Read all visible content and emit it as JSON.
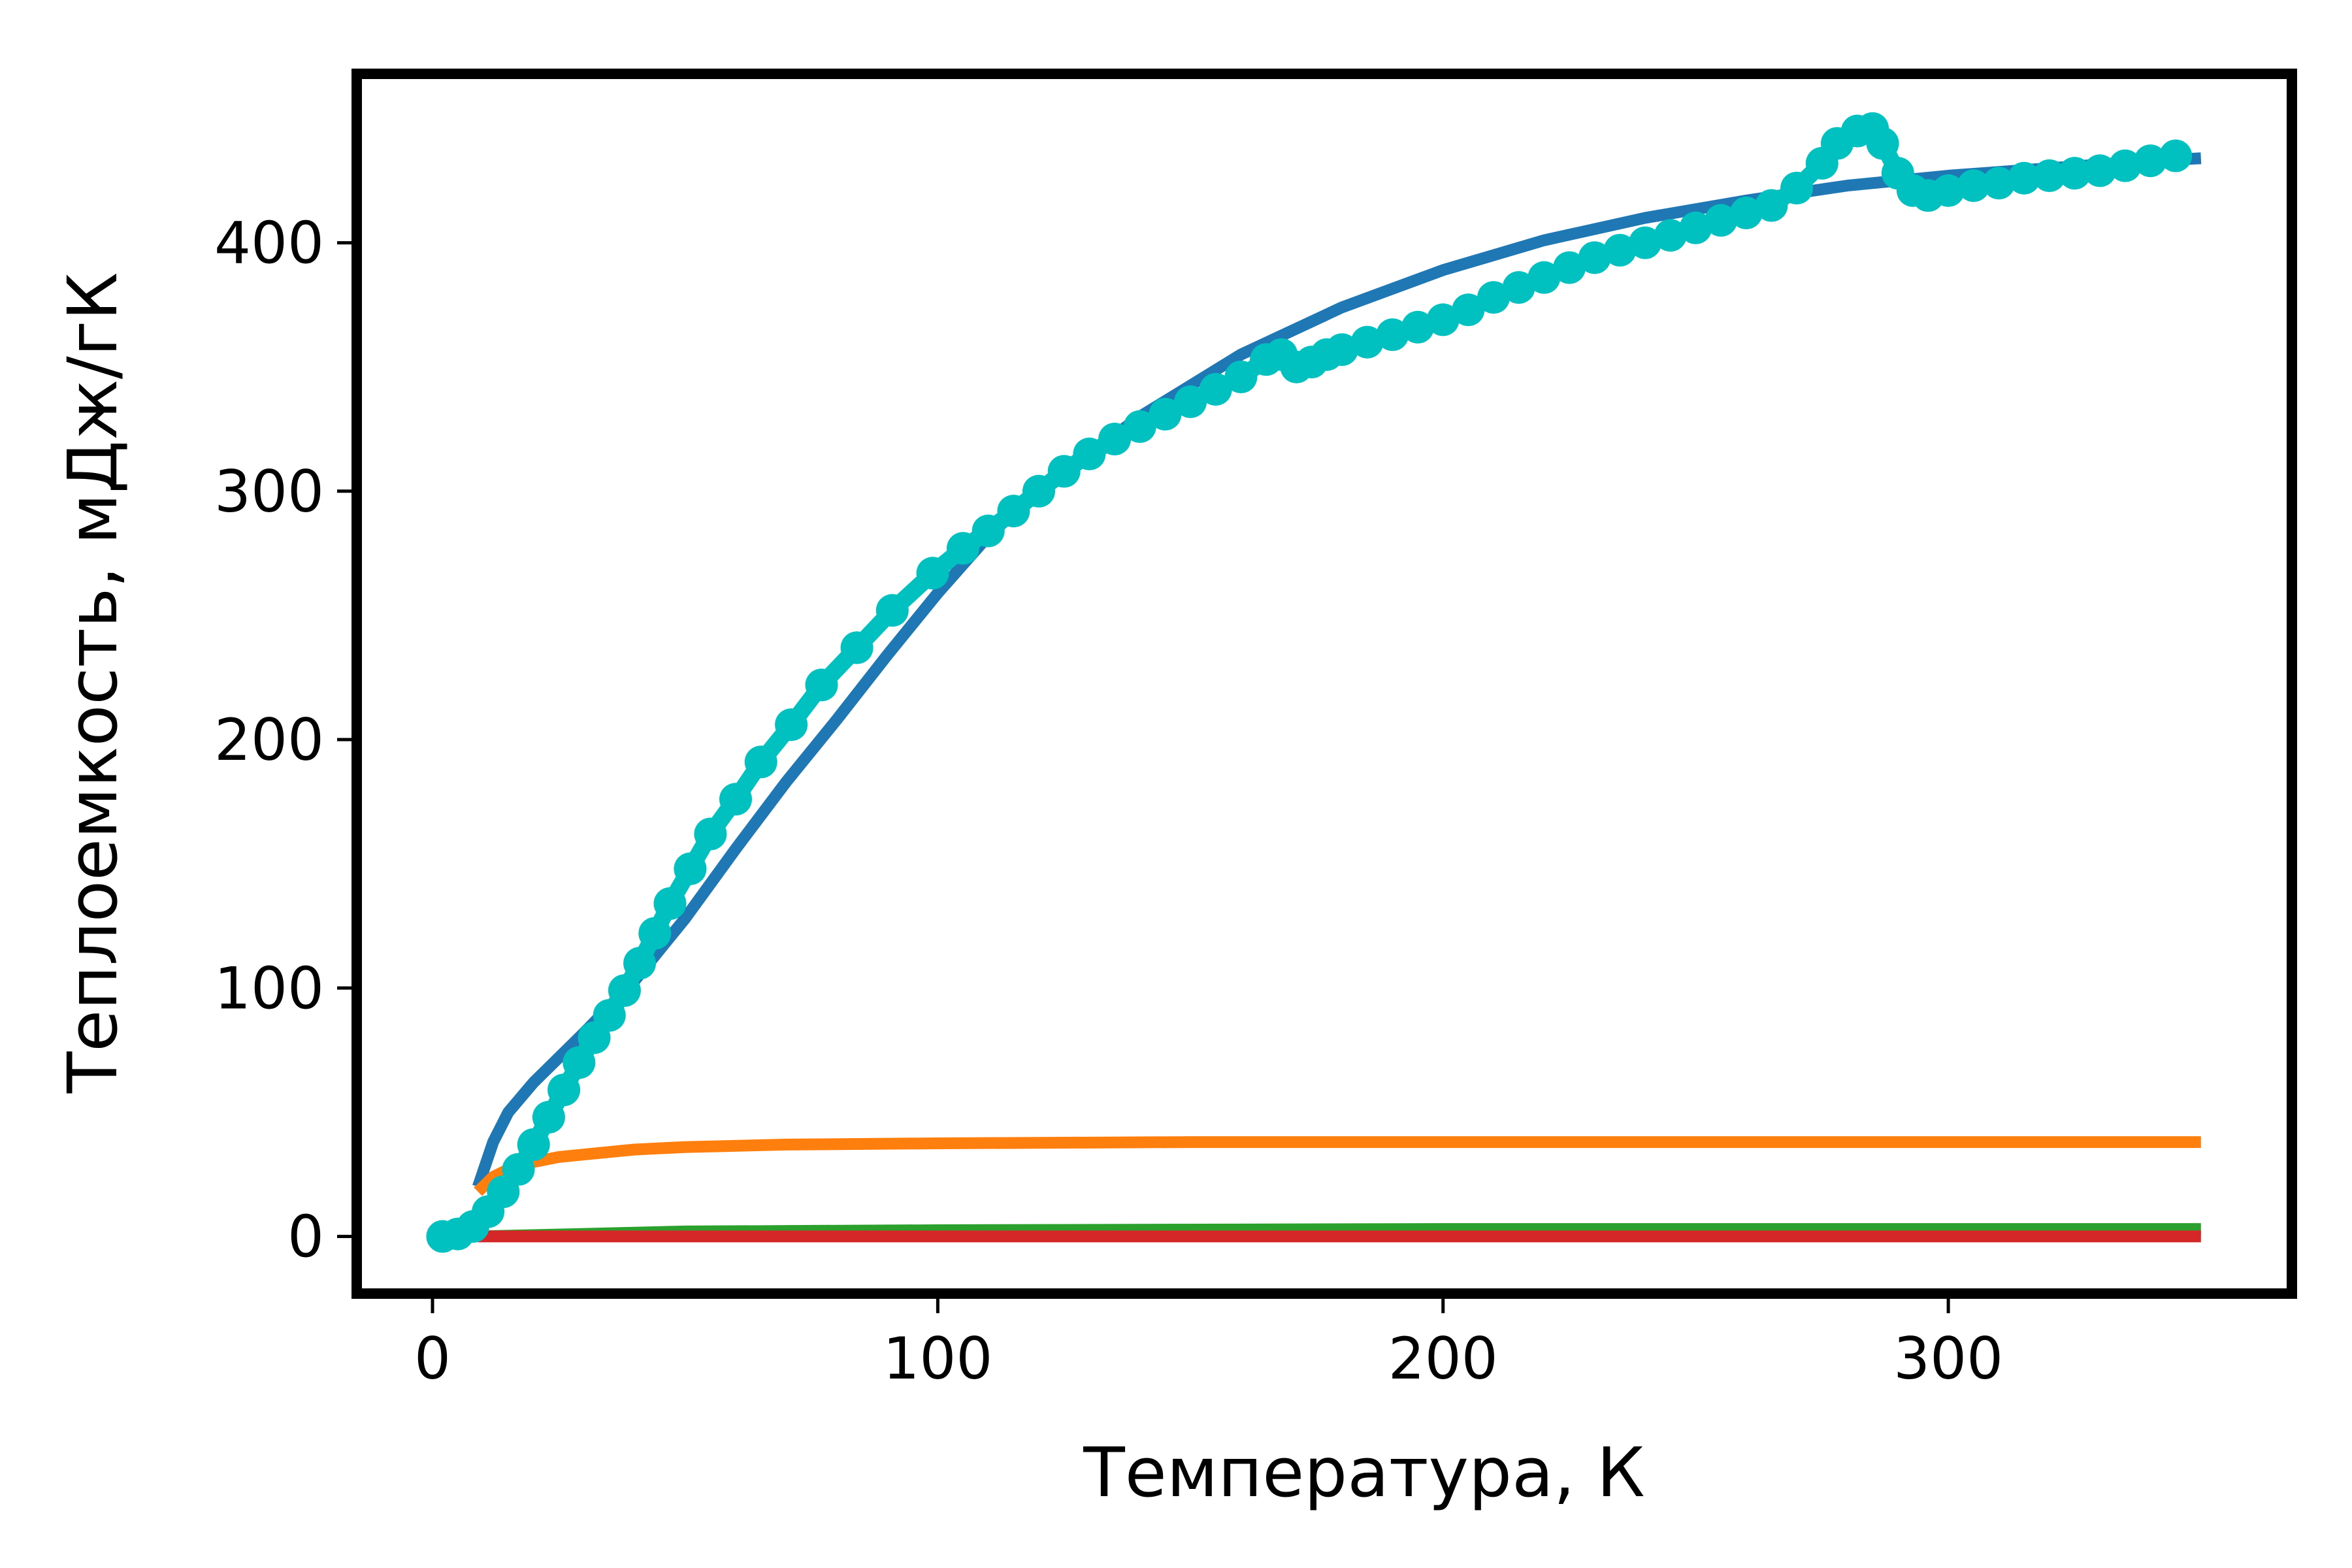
{
  "chart_data": {
    "type": "line",
    "xlabel": "Температура, К",
    "ylabel": "Теплоемкость, мДж/гК",
    "xlim": [
      -15,
      368
    ],
    "ylim": [
      -23,
      468
    ],
    "xticks": [
      "0",
      "100",
      "200",
      "300"
    ],
    "yticks": [
      "0",
      "100",
      "200",
      "300",
      "400"
    ],
    "grid": false,
    "legend": "none",
    "colors": {
      "fit_total": "#1f77b4",
      "component_orange": "#ff7f0e",
      "component_green": "#2ca02c",
      "component_red": "#d62728",
      "measured": "#00c0c0",
      "frame": "#000000"
    },
    "series": [
      {
        "x": [
          9,
          12,
          15,
          20,
          25,
          30,
          40,
          50,
          60,
          70,
          80,
          90,
          100,
          110,
          120,
          140,
          160,
          180,
          200,
          220,
          240,
          260,
          280,
          300,
          320,
          340,
          350
        ],
        "values": [
          20,
          38,
          50,
          62,
          72,
          82,
          103,
          128,
          156,
          183,
          208,
          234,
          259,
          282,
          300,
          330,
          355,
          374,
          389,
          401,
          410,
          417,
          423,
          427,
          430,
          433,
          434
        ]
      },
      {
        "x": [
          9,
          12,
          15,
          20,
          25,
          30,
          40,
          50,
          70,
          100,
          150,
          200,
          250,
          300,
          350
        ],
        "values": [
          18,
          24,
          27,
          30,
          32,
          33,
          35,
          36,
          37,
          37.5,
          38,
          38,
          38,
          38,
          38
        ]
      },
      {
        "x": [
          9,
          50,
          100,
          200,
          350
        ],
        "values": [
          0,
          2,
          2.5,
          3,
          3
        ]
      },
      {
        "x": [
          9,
          100,
          200,
          350
        ],
        "values": [
          0,
          0,
          0,
          0
        ]
      },
      {
        "x": [
          2,
          5,
          8,
          11,
          14,
          17,
          20,
          23,
          26,
          29,
          32,
          35,
          38,
          41,
          44,
          47,
          51,
          55,
          60,
          65,
          71,
          77,
          84,
          91,
          99,
          105,
          110,
          115,
          120,
          125,
          130,
          135,
          140,
          145,
          150,
          155,
          160,
          165,
          168,
          171,
          174,
          177,
          180,
          185,
          190,
          195,
          200,
          205,
          210,
          215,
          220,
          225,
          230,
          235,
          240,
          245,
          250,
          255,
          260,
          265,
          270,
          275,
          278,
          282,
          285,
          287,
          290,
          293,
          296,
          300,
          305,
          310,
          315,
          320,
          325,
          330,
          335,
          340,
          345
        ],
        "values": [
          0,
          1,
          4,
          10,
          18,
          27,
          37,
          48,
          59,
          70,
          80,
          89,
          99,
          110,
          122,
          134,
          148,
          162,
          176,
          191,
          206,
          222,
          237,
          252,
          267,
          277,
          284,
          292,
          300,
          308,
          315,
          321,
          326,
          331,
          336,
          341,
          346,
          353,
          355,
          350,
          352,
          355,
          357,
          360,
          363,
          366,
          369,
          373,
          378,
          382,
          386,
          390,
          394,
          397,
          400,
          403,
          406,
          409,
          412,
          415,
          422,
          432,
          440,
          445,
          446,
          440,
          428,
          421,
          419,
          421,
          423,
          424,
          426,
          427,
          428,
          429,
          431,
          433,
          435
        ]
      }
    ]
  }
}
